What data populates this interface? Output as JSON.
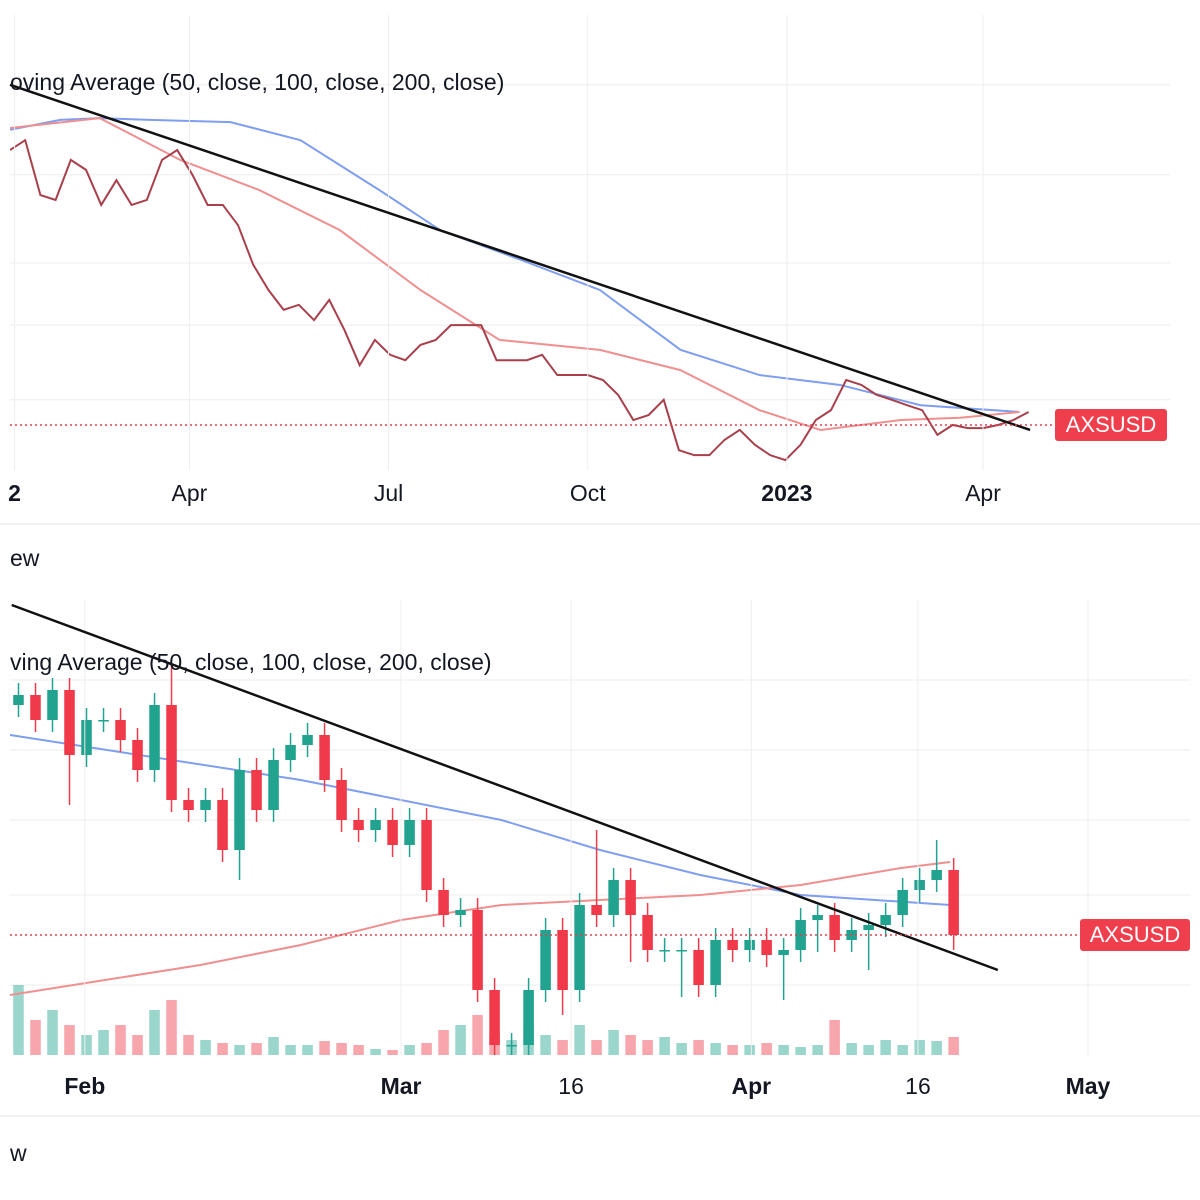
{
  "chart_data": [
    {
      "type": "line",
      "legend_text": "oving Average (50, close, 100, close, 200, close)",
      "symbol": "AXSUSD",
      "footer": "ew",
      "color": "#a8404c",
      "values": [
        71.1,
        73.3,
        61.1,
        60,
        68.9,
        66.7,
        58.9,
        64.4,
        58.9,
        60,
        68.9,
        71.1,
        65.6,
        58.9,
        58.9,
        54.4,
        45.6,
        40,
        35.6,
        36.7,
        33.3,
        37.8,
        31.1,
        23.3,
        28.9,
        25.6,
        24.4,
        27.8,
        28.9,
        32.2,
        32.2,
        32.2,
        24.4,
        24.4,
        24.4,
        25.6,
        21.1,
        21.1,
        21.1,
        20,
        16.7,
        11.1,
        12.2,
        15.6,
        4.4,
        3.3,
        3.3,
        6.7,
        8.9,
        5.6,
        3.3,
        2.2,
        5.6,
        11.1,
        13.3,
        20,
        18.9,
        16.7,
        15.6,
        14.4,
        13.3,
        7.8,
        10,
        9.3,
        9.3,
        10,
        11.1,
        12.9
      ],
      "ma_lines": [
        {
          "color": "#7f9ef0",
          "x": [
            0,
            3.3,
            5.9,
            9.2,
            14.5,
            19.1,
            24.3,
            28.3,
            33.6,
            38.8,
            44.1,
            49.3,
            54.6,
            59.9,
            66.4
          ],
          "values": [
            75.6,
            77.8,
            78.2,
            77.8,
            77.3,
            73.3,
            62.2,
            53.3,
            46.7,
            40,
            26.7,
            21.1,
            18.9,
            14.4,
            12.9
          ]
        },
        {
          "color": "#ef8f8f",
          "x": [
            0,
            5.9,
            11.2,
            16.4,
            21.7,
            27,
            32.2,
            38.8,
            44.1,
            49.3,
            53.3,
            58.6,
            62.5,
            66.4
          ],
          "values": [
            76,
            78.2,
            68.9,
            62.2,
            53.3,
            40,
            28.9,
            26.7,
            22.2,
            13.3,
            8.9,
            11.1,
            11.6,
            12.9
          ]
        }
      ],
      "trendline": {
        "x": [
          0,
          67.1
        ],
        "values": [
          85.6,
          8.9
        ]
      },
      "price_line": 10,
      "ylim": [
        0,
        100
      ],
      "yticks": [
        15.6,
        32.2,
        46,
        65.6,
        85.6
      ],
      "xlim": [
        0,
        76.3
      ],
      "xticks": [
        {
          "value": 0.3,
          "label": "2",
          "bold": true
        },
        {
          "value": 11.8,
          "label": "Apr"
        },
        {
          "value": 24.9,
          "label": "Jul"
        },
        {
          "value": 38,
          "label": "Oct"
        },
        {
          "value": 51.1,
          "label": "2023",
          "bold": true
        },
        {
          "value": 64,
          "label": "Apr"
        }
      ]
    },
    {
      "type": "candlestick",
      "legend_text": "ving Average (50, close, 100, close, 200, close)",
      "symbol": "AXSUSD",
      "footer": "w",
      "up_color": "#22a38f",
      "down_color": "#f03a4a",
      "open": [
        350,
        360,
        335,
        365,
        300,
        335,
        335,
        315,
        285,
        350,
        255,
        245,
        255,
        205,
        285,
        245,
        295,
        310,
        320,
        275,
        235,
        225,
        235,
        210,
        235,
        165,
        140,
        145,
        65,
        10,
        10,
        65,
        125,
        65,
        150,
        140,
        175,
        140,
        105,
        105,
        105,
        70,
        115,
        105,
        115,
        100,
        105,
        135,
        140,
        115,
        125,
        130,
        140,
        165,
        175,
        185
      ],
      "close": [
        360,
        335,
        365,
        300,
        335,
        335,
        315,
        285,
        350,
        255,
        245,
        255,
        205,
        285,
        245,
        295,
        310,
        320,
        275,
        235,
        225,
        235,
        210,
        235,
        165,
        140,
        145,
        65,
        10,
        10,
        65,
        125,
        65,
        150,
        140,
        175,
        140,
        105,
        105,
        105,
        70,
        115,
        105,
        115,
        100,
        105,
        135,
        140,
        115,
        125,
        130,
        140,
        165,
        175,
        185,
        120
      ],
      "high": [
        372,
        372,
        377,
        377,
        347,
        347,
        347,
        327,
        362,
        390,
        267,
        267,
        267,
        297,
        297,
        307,
        322,
        332,
        332,
        287,
        247,
        247,
        247,
        247,
        247,
        177,
        157,
        157,
        77,
        22,
        77,
        137,
        137,
        162,
        225,
        187,
        187,
        152,
        117,
        117,
        117,
        127,
        127,
        127,
        127,
        117,
        147,
        150,
        152,
        137,
        142,
        152,
        177,
        187,
        215,
        197
      ],
      "low": [
        338,
        323,
        323,
        250,
        288,
        323,
        303,
        273,
        273,
        243,
        233,
        233,
        193,
        175,
        233,
        233,
        283,
        298,
        263,
        223,
        213,
        213,
        198,
        198,
        153,
        128,
        128,
        53,
        0,
        0,
        0,
        53,
        40,
        53,
        128,
        128,
        93,
        93,
        93,
        58,
        58,
        58,
        93,
        93,
        88,
        55,
        93,
        103,
        103,
        103,
        85,
        118,
        128,
        153,
        163,
        105
      ],
      "volume": [
        70,
        35,
        45,
        30,
        20,
        25,
        30,
        20,
        45,
        55,
        20,
        15,
        12,
        10,
        12,
        18,
        10,
        10,
        14,
        12,
        10,
        6,
        5,
        10,
        12,
        25,
        30,
        40,
        20,
        15,
        30,
        20,
        15,
        30,
        15,
        25,
        20,
        15,
        18,
        12,
        15,
        12,
        10,
        10,
        12,
        10,
        8,
        10,
        35,
        12,
        10,
        15,
        10,
        15,
        14,
        18
      ],
      "vlim": [
        0,
        70
      ],
      "ma_lines": [
        {
          "color": "#7f9ef0",
          "x": [
            -0.5,
            16.6,
            28.4,
            34.2,
            40.1,
            46,
            54.8
          ],
          "values": [
            320,
            275,
            235,
            205,
            180,
            160,
            150
          ]
        },
        {
          "color": "#ef8f8f",
          "x": [
            -0.5,
            10.7,
            16.6,
            22.5,
            28.4,
            34.2,
            40.1,
            46,
            51.9,
            54.8
          ],
          "values": [
            60,
            90,
            110,
            135,
            150,
            155,
            160,
            170,
            187,
            193
          ]
        }
      ],
      "trendline": {
        "x": [
          -0.4,
          57.6
        ],
        "values": [
          450,
          85
        ]
      },
      "price_line": 120,
      "ylim": [
        0,
        450
      ],
      "yticks": [
        70,
        160,
        235,
        305,
        375
      ],
      "xlim": [
        -0.5,
        68.9
      ],
      "xticks": [
        {
          "value": 3.9,
          "label": "Feb",
          "bold": true
        },
        {
          "value": 22.5,
          "label": "Mar",
          "bold": true
        },
        {
          "value": 32.5,
          "label": "16"
        },
        {
          "value": 43.1,
          "label": "Apr",
          "bold": true
        },
        {
          "value": 52.9,
          "label": "16"
        },
        {
          "value": 62.9,
          "label": "May",
          "bold": true
        }
      ]
    }
  ]
}
